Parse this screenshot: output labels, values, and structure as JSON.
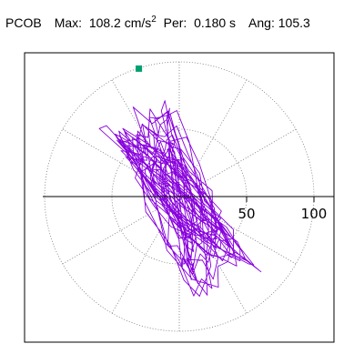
{
  "header": {
    "station": "PCOB",
    "max_label": "Max:",
    "max_value": "108.2 cm/s",
    "max_exp": "2",
    "per_label": "Per:",
    "per_value": "0.180 s",
    "ang_label": "Ang:",
    "ang_value": "105.3"
  },
  "chart_data": {
    "type": "polar_orbit",
    "title": "",
    "rlim": [
      0,
      100
    ],
    "radial_ticks": [
      {
        "value": 50,
        "label": "50"
      },
      {
        "value": 100,
        "label": "100"
      }
    ],
    "angular_grid_step_deg": 30,
    "grid": true,
    "grid_style": "dotted",
    "trace_color": "#8800dd",
    "marker_color": "#00a070",
    "marker_point": {
      "x": -30,
      "y": 95
    },
    "max_radius": 108.2,
    "orientation_angle_deg": 105.3,
    "orbit": {
      "description_free": true,
      "segments": 520,
      "seed": 7,
      "axis_major": 82,
      "axis_minor": 28,
      "tilt_deg": 118
    }
  }
}
